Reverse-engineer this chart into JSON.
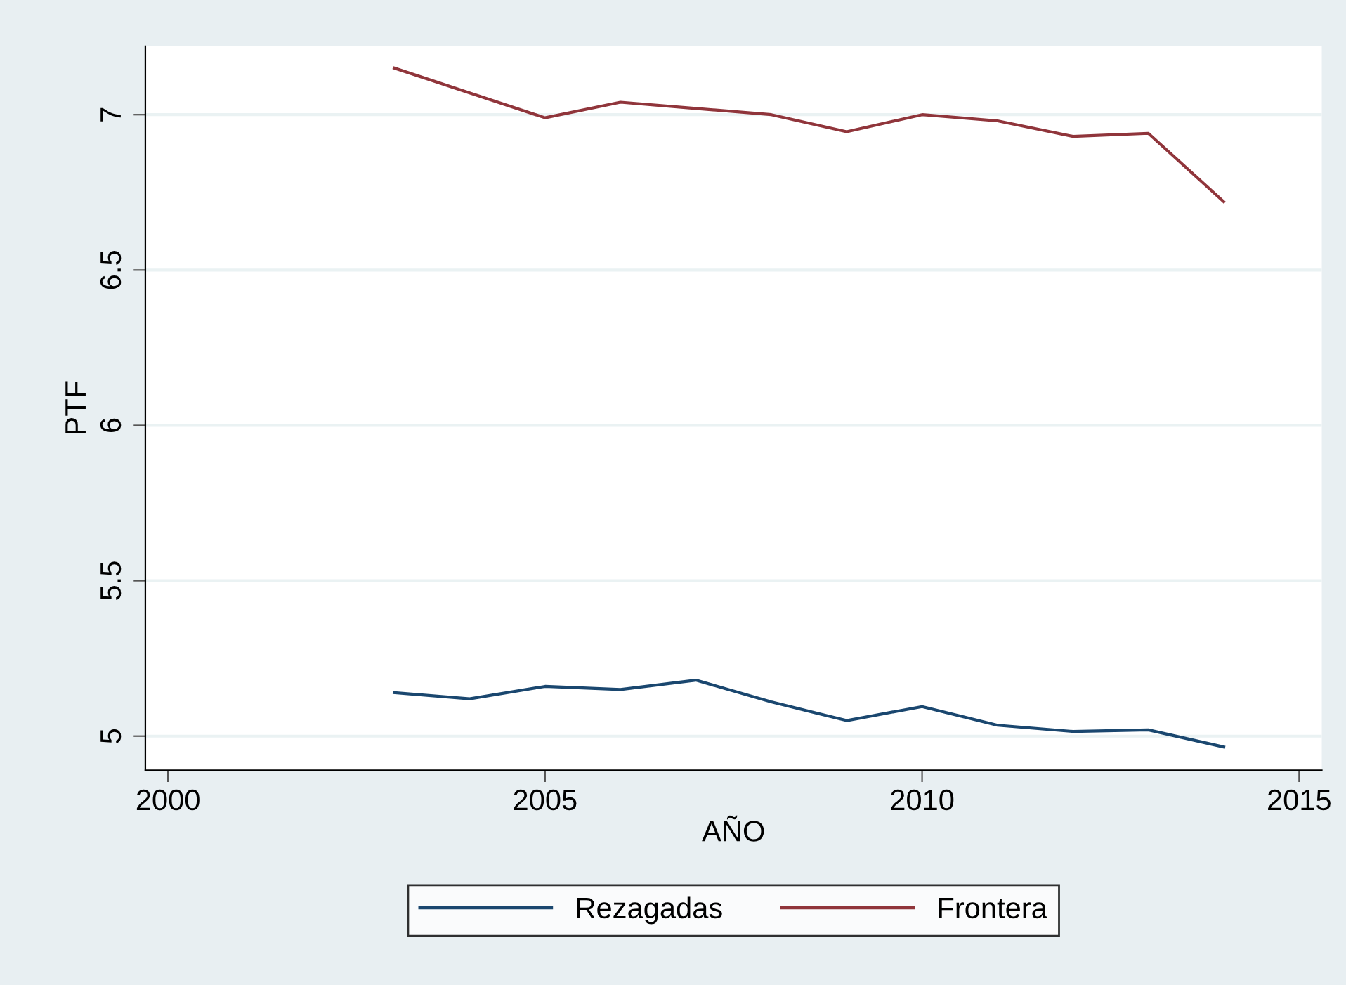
{
  "chart_data": {
    "type": "line",
    "xlabel": "AÑO",
    "ylabel": "PTF",
    "x": [
      2003,
      2004,
      2005,
      2006,
      2007,
      2008,
      2009,
      2010,
      2011,
      2012,
      2013,
      2014
    ],
    "series": [
      {
        "name": "Rezagadas",
        "color": "#1a476f",
        "values": [
          5.14,
          5.12,
          5.16,
          5.15,
          5.18,
          5.11,
          5.05,
          5.095,
          5.035,
          5.015,
          5.02,
          4.965
        ]
      },
      {
        "name": "Frontera",
        "color": "#90353b",
        "values": [
          7.15,
          7.07,
          6.99,
          7.04,
          7.02,
          7.0,
          6.945,
          7.0,
          6.98,
          6.93,
          6.94,
          6.72
        ]
      }
    ],
    "xlim": [
      1999.7,
      2015.3
    ],
    "ylim": [
      4.89,
      7.22
    ],
    "xticks": [
      2000,
      2005,
      2010,
      2015
    ],
    "yticks": [
      5,
      5.5,
      6,
      6.5,
      7
    ],
    "grid": "y",
    "legend": "bottom",
    "marker": "none",
    "line_style": "solid"
  }
}
